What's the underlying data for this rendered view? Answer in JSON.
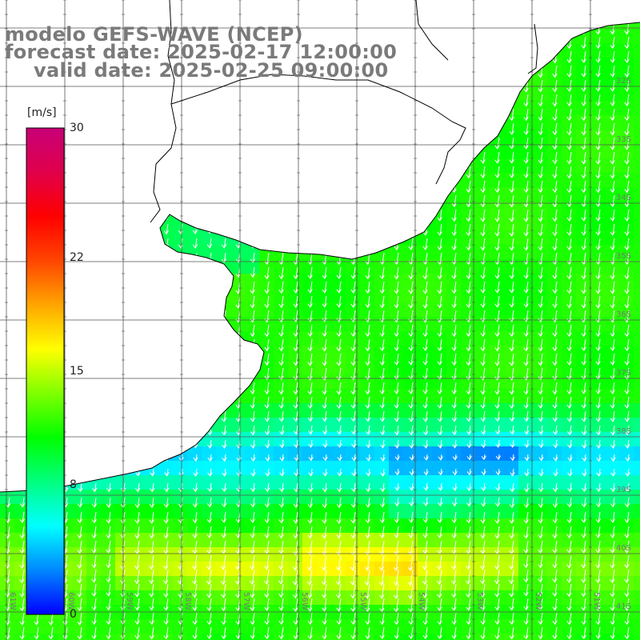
{
  "header": {
    "model_line": "modelo GEFS-WAVE (NCEP)",
    "forecast_line": "forecast date: 2025-02-17 12:00:00",
    "valid_line": "valid date: 2025-02-25 09:00:00"
  },
  "colorbar": {
    "unit": "[m/s]",
    "min": 0,
    "max": 30,
    "ticks": [
      {
        "value": 30,
        "label": "30"
      },
      {
        "value": 22,
        "label": "22"
      },
      {
        "value": 15,
        "label": "15"
      },
      {
        "value": 8,
        "label": "8"
      },
      {
        "value": 0,
        "label": "0"
      }
    ],
    "stops": [
      "#0000ff",
      "#0088ff",
      "#00ffff",
      "#00ff7f",
      "#00ff00",
      "#7fff00",
      "#ffff00",
      "#ffa500",
      "#ff4500",
      "#ff0000",
      "#e0004a",
      "#c80078"
    ]
  },
  "map": {
    "lat_labels": [
      "32S",
      "33S",
      "34S",
      "35S",
      "36S",
      "37S",
      "38S",
      "39S",
      "40S",
      "41S"
    ],
    "lon_labels": [
      "61W",
      "60W",
      "59W",
      "58W",
      "57W",
      "56W",
      "55W",
      "54W",
      "53W",
      "52W",
      "51W"
    ],
    "wind_direction": "from north (southward arrows)",
    "land_color": "#ffffff",
    "coast_color": "#000000",
    "arrow_color": "#ffffff"
  }
}
